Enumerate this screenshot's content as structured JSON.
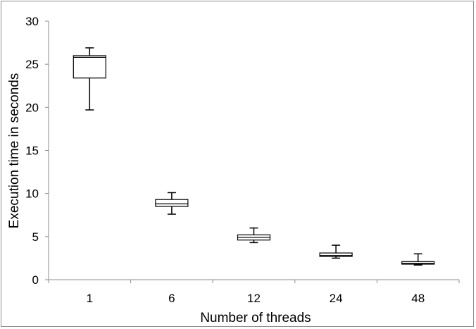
{
  "chart_data": {
    "type": "box",
    "title": "",
    "xlabel": "Number of threads",
    "ylabel": "Execution time in seconds",
    "ylim": [
      0,
      30
    ],
    "y_ticks": [
      0,
      5,
      10,
      15,
      20,
      25,
      30
    ],
    "categories": [
      "1",
      "6",
      "12",
      "24",
      "48"
    ],
    "boxes": [
      {
        "category": "1",
        "min": 19.7,
        "q1": 23.4,
        "median": 25.8,
        "q3": 26.0,
        "max": 26.9
      },
      {
        "category": "6",
        "min": 7.6,
        "q1": 8.5,
        "median": 8.8,
        "q3": 9.3,
        "max": 10.1
      },
      {
        "category": "12",
        "min": 4.3,
        "q1": 4.6,
        "median": 4.9,
        "q3": 5.2,
        "max": 6.0
      },
      {
        "category": "24",
        "min": 2.5,
        "q1": 2.7,
        "median": 2.8,
        "q3": 3.1,
        "max": 4.0
      },
      {
        "category": "48",
        "min": 1.7,
        "q1": 1.8,
        "median": 1.9,
        "q3": 2.1,
        "max": 3.0
      }
    ],
    "grid": false,
    "legend": "none",
    "colors": {
      "box_fill": "#ffffff",
      "stroke": "#000000",
      "axis": "#8c8c8c",
      "frame": "#8c8c8c"
    }
  }
}
